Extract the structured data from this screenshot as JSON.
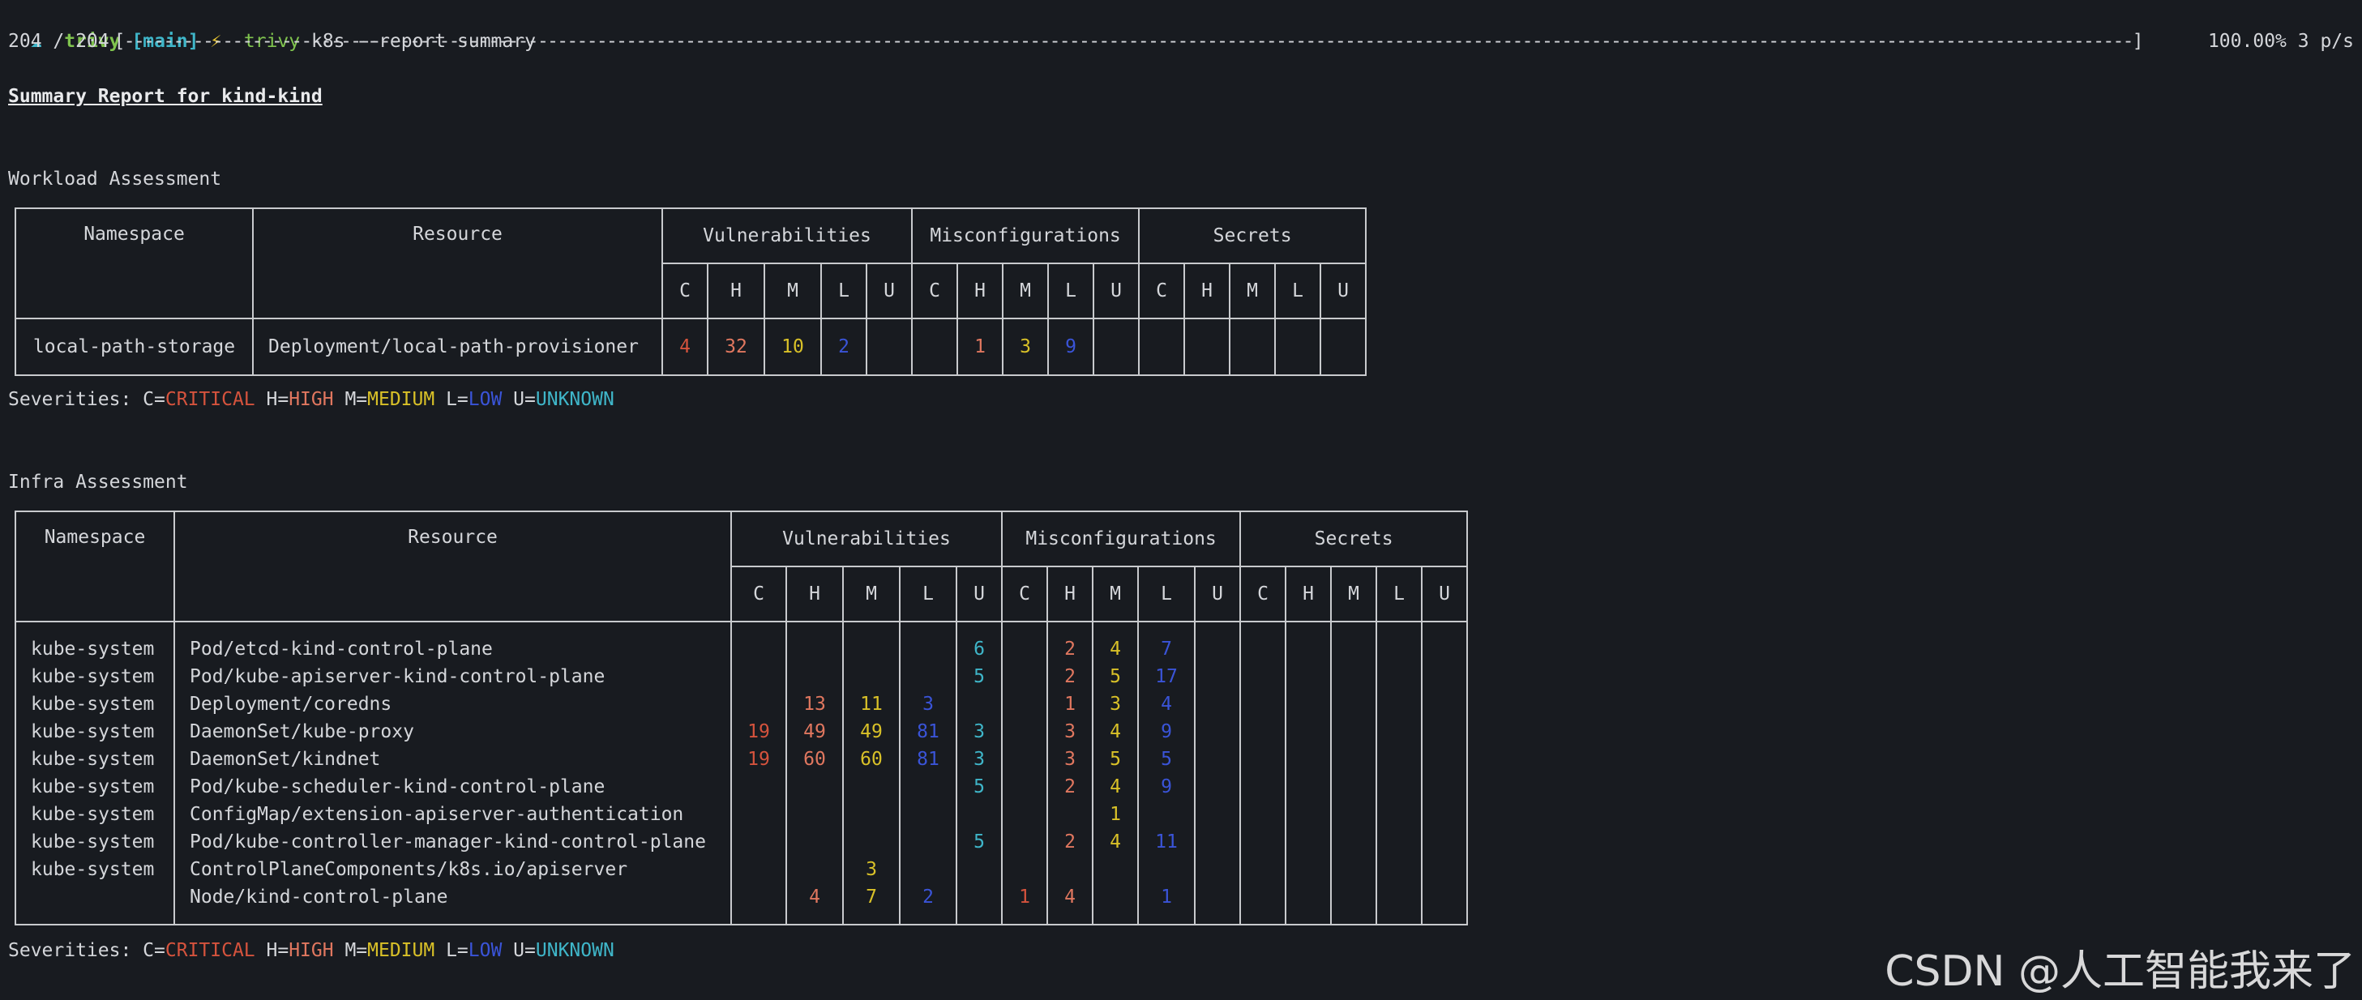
{
  "prompt": {
    "arrow": "☁",
    "repo": "trivy",
    "branch": "[main]",
    "bolt": "⚡",
    "command_bin": "trivy",
    "command_args": " k8s --report summary"
  },
  "progress": {
    "count": "204 / 204",
    "bar": "[------------------------------------------------------------------------------------------------------------------------------------------------------------------------------------------------------------]",
    "percent": "100.00%",
    "rate": "3 p/s",
    "fraction": 1.0
  },
  "report_title": "Summary Report for kind-kind",
  "severity_legend": {
    "prefix": "Severities: ",
    "items": [
      {
        "key": "C=",
        "word": "CRITICAL"
      },
      {
        "key": " H=",
        "word": "HIGH"
      },
      {
        "key": " M=",
        "word": "MEDIUM"
      },
      {
        "key": " L=",
        "word": "LOW"
      },
      {
        "key": " U=",
        "word": "UNKNOWN"
      }
    ]
  },
  "headers": {
    "namespace": "Namespace",
    "resource": "Resource",
    "vulnerabilities": "Vulnerabilities",
    "misconfigurations": "Misconfigurations",
    "secrets": "Secrets",
    "sev_cols": [
      "C",
      "H",
      "M",
      "L",
      "U"
    ]
  },
  "workload": {
    "title": "Workload Assessment",
    "rows": [
      {
        "namespace": "local-path-storage",
        "resource": "Deployment/local-path-provisioner",
        "vuln": [
          "4",
          "32",
          "10",
          "2",
          ""
        ],
        "misconf": [
          "",
          "1",
          "3",
          "9",
          ""
        ],
        "secrets": [
          "",
          "",
          "",
          "",
          ""
        ]
      }
    ]
  },
  "infra": {
    "title": "Infra Assessment",
    "rows": [
      {
        "namespace": "kube-system",
        "resource": "Pod/etcd-kind-control-plane",
        "vuln": [
          "",
          "",
          "",
          "",
          "6"
        ],
        "misconf": [
          "",
          "2",
          "4",
          "7",
          ""
        ],
        "secrets": [
          "",
          "",
          "",
          "",
          ""
        ]
      },
      {
        "namespace": "kube-system",
        "resource": "Pod/kube-apiserver-kind-control-plane",
        "vuln": [
          "",
          "",
          "",
          "",
          "5"
        ],
        "misconf": [
          "",
          "2",
          "5",
          "17",
          ""
        ],
        "secrets": [
          "",
          "",
          "",
          "",
          ""
        ]
      },
      {
        "namespace": "kube-system",
        "resource": "Deployment/coredns",
        "vuln": [
          "",
          "13",
          "11",
          "3",
          ""
        ],
        "misconf": [
          "",
          "1",
          "3",
          "4",
          ""
        ],
        "secrets": [
          "",
          "",
          "",
          "",
          ""
        ]
      },
      {
        "namespace": "kube-system",
        "resource": "DaemonSet/kube-proxy",
        "vuln": [
          "19",
          "49",
          "49",
          "81",
          "3"
        ],
        "misconf": [
          "",
          "3",
          "4",
          "9",
          ""
        ],
        "secrets": [
          "",
          "",
          "",
          "",
          ""
        ]
      },
      {
        "namespace": "kube-system",
        "resource": "DaemonSet/kindnet",
        "vuln": [
          "19",
          "60",
          "60",
          "81",
          "3"
        ],
        "misconf": [
          "",
          "3",
          "5",
          "5",
          ""
        ],
        "secrets": [
          "",
          "",
          "",
          "",
          ""
        ]
      },
      {
        "namespace": "kube-system",
        "resource": "Pod/kube-scheduler-kind-control-plane",
        "vuln": [
          "",
          "",
          "",
          "",
          "5"
        ],
        "misconf": [
          "",
          "2",
          "4",
          "9",
          ""
        ],
        "secrets": [
          "",
          "",
          "",
          "",
          ""
        ]
      },
      {
        "namespace": "kube-system",
        "resource": "ConfigMap/extension-apiserver-authentication",
        "vuln": [
          "",
          "",
          "",
          "",
          ""
        ],
        "misconf": [
          "",
          "",
          "1",
          "",
          ""
        ],
        "secrets": [
          "",
          "",
          "",
          "",
          ""
        ]
      },
      {
        "namespace": "kube-system",
        "resource": "Pod/kube-controller-manager-kind-control-plane",
        "vuln": [
          "",
          "",
          "",
          "",
          "5"
        ],
        "misconf": [
          "",
          "2",
          "4",
          "11",
          ""
        ],
        "secrets": [
          "",
          "",
          "",
          "",
          ""
        ]
      },
      {
        "namespace": "kube-system",
        "resource": "ControlPlaneComponents/k8s.io/apiserver",
        "vuln": [
          "",
          "",
          "3",
          "",
          ""
        ],
        "misconf": [
          "",
          "",
          "",
          "",
          ""
        ],
        "secrets": [
          "",
          "",
          "",
          "",
          ""
        ]
      },
      {
        "namespace": "",
        "resource": "Node/kind-control-plane",
        "vuln": [
          "",
          "4",
          "7",
          "2",
          ""
        ],
        "misconf": [
          "1",
          "4",
          "",
          "1",
          ""
        ],
        "secrets": [
          "",
          "",
          "",
          "",
          ""
        ]
      }
    ]
  },
  "colors": {
    "background": "#181b20",
    "critical": "#d5533d",
    "high": "#e0775f",
    "medium": "#d9c128",
    "low": "#3a54d8",
    "unknown": "#3fb6c9"
  },
  "watermark": "CSDN @人工智能我来了"
}
